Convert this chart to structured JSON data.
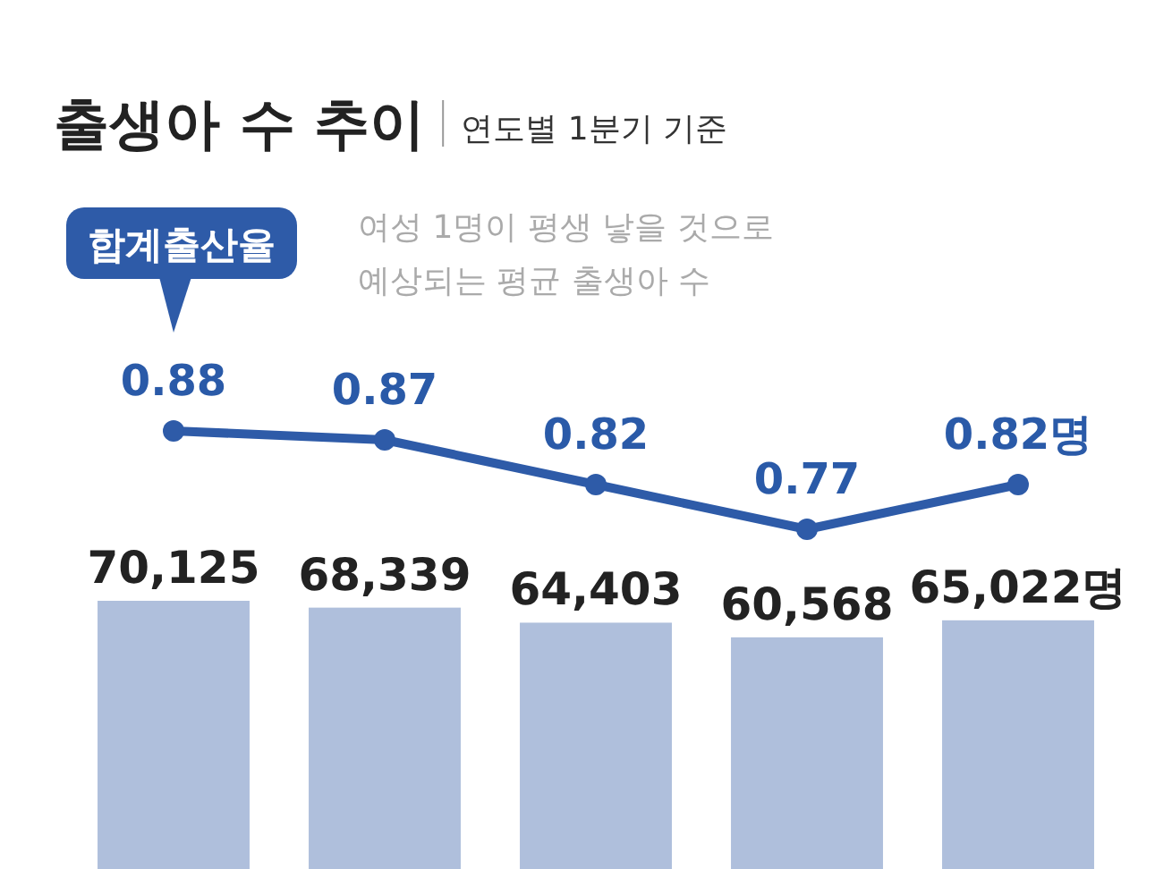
{
  "chart_data": [
    {
      "type": "line",
      "title": "출생아 수 추이",
      "subtitle": "연도별 1분기 기준",
      "categories": [
        null,
        null,
        null,
        null,
        null
      ],
      "data_labels": true,
      "annotations": [
        "여성 1명이 평생 낳을 것으로 예상되는 평균 출생아 수"
      ],
      "series": [
        {
          "name": "합계출산율",
          "color": "#2e5ba8",
          "marker": "circle",
          "values": [
            0.88,
            0.87,
            0.82,
            0.77,
            0.82
          ],
          "value_labels": [
            "0.88",
            "0.87",
            "0.82",
            "0.77",
            "0.82명"
          ]
        }
      ]
    },
    {
      "type": "bar",
      "categories": [
        null,
        null,
        null,
        null,
        null
      ],
      "data_labels": true,
      "color": "#afbfdc",
      "values": [
        70125,
        68339,
        64403,
        60568,
        65022
      ],
      "value_labels": [
        "70,125",
        "68,339",
        "64,403",
        "60,568",
        "65,022명"
      ]
    }
  ]
}
